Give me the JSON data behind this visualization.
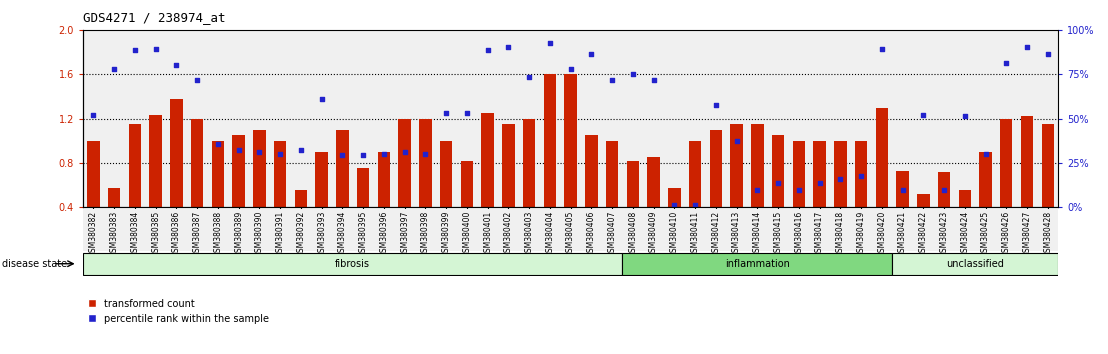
{
  "title": "GDS4271 / 238974_at",
  "samples": [
    "GSM380382",
    "GSM380383",
    "GSM380384",
    "GSM380385",
    "GSM380386",
    "GSM380387",
    "GSM380388",
    "GSM380389",
    "GSM380390",
    "GSM380391",
    "GSM380392",
    "GSM380393",
    "GSM380394",
    "GSM380395",
    "GSM380396",
    "GSM380397",
    "GSM380398",
    "GSM380399",
    "GSM380400",
    "GSM380401",
    "GSM380402",
    "GSM380403",
    "GSM380404",
    "GSM380405",
    "GSM380406",
    "GSM380407",
    "GSM380408",
    "GSM380409",
    "GSM380410",
    "GSM380411",
    "GSM380412",
    "GSM380413",
    "GSM380414",
    "GSM380415",
    "GSM380416",
    "GSM380417",
    "GSM380418",
    "GSM380419",
    "GSM380420",
    "GSM380421",
    "GSM380422",
    "GSM380423",
    "GSM380424",
    "GSM380425",
    "GSM380426",
    "GSM380427",
    "GSM380428"
  ],
  "bar_values": [
    1.0,
    0.57,
    1.15,
    1.23,
    1.38,
    1.2,
    1.0,
    1.05,
    1.1,
    1.0,
    0.55,
    0.9,
    1.1,
    0.75,
    0.9,
    1.2,
    1.2,
    1.0,
    0.82,
    1.25,
    1.15,
    1.2,
    1.6,
    1.6,
    1.05,
    1.0,
    0.82,
    0.85,
    0.57,
    1.0,
    1.1,
    1.15,
    1.15,
    1.05,
    1.0,
    1.0,
    1.0,
    1.0,
    1.3,
    0.73,
    0.52,
    0.72,
    0.55,
    0.9,
    1.2,
    1.22,
    1.15
  ],
  "dot_values": [
    1.23,
    1.65,
    1.82,
    1.83,
    1.68,
    1.55,
    0.97,
    0.92,
    0.9,
    0.88,
    0.92,
    1.38,
    0.87,
    0.87,
    0.88,
    0.9,
    0.88,
    1.25,
    1.25,
    1.82,
    1.85,
    1.58,
    1.88,
    1.65,
    1.78,
    1.55,
    1.6,
    1.55,
    0.42,
    0.42,
    1.32,
    1.0,
    0.55,
    0.62,
    0.55,
    0.62,
    0.65,
    0.68,
    1.83,
    0.55,
    1.23,
    0.55,
    1.22,
    0.88,
    1.7,
    1.85,
    1.78
  ],
  "groups": [
    {
      "label": "fibrosis",
      "start": 0,
      "end": 26,
      "color": "#d4f5d4"
    },
    {
      "label": "inflammation",
      "start": 26,
      "end": 39,
      "color": "#80d880"
    },
    {
      "label": "unclassified",
      "start": 39,
      "end": 47,
      "color": "#d4f5d4"
    }
  ],
  "ylim_left": [
    0.4,
    2.0
  ],
  "ylim_right": [
    0,
    100
  ],
  "yticks_left": [
    0.4,
    0.8,
    1.2,
    1.6,
    2.0
  ],
  "yticks_right": [
    0,
    25,
    50,
    75,
    100
  ],
  "hlines": [
    0.8,
    1.2,
    1.6
  ],
  "bar_color": "#cc2200",
  "dot_color": "#2222cc",
  "bar_width": 0.6,
  "plot_bg": "#f0f0f0",
  "fig_bg": "#ffffff",
  "legend_red": "transformed count",
  "legend_blue": "percentile rank within the sample",
  "disease_state_label": "disease state"
}
